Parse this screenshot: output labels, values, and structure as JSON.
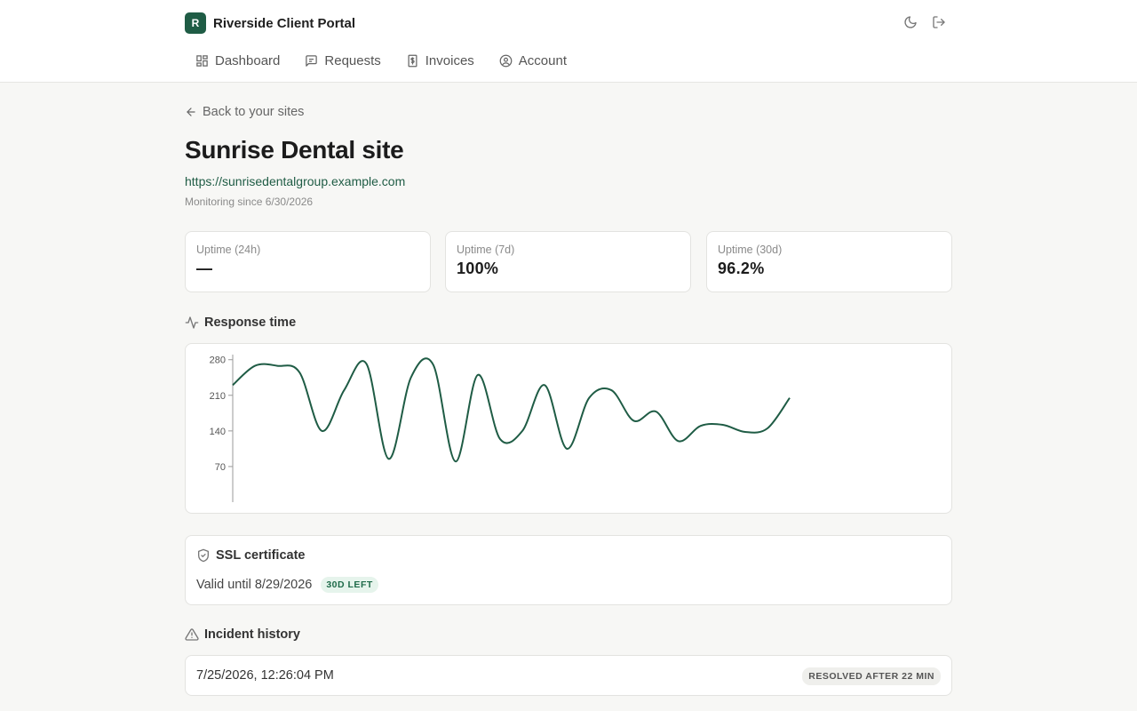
{
  "brand": {
    "logo_letter": "R",
    "name": "Riverside Client Portal"
  },
  "top_actions": [
    {
      "name": "theme-toggle",
      "icon": "moon-icon"
    },
    {
      "name": "logout",
      "icon": "logout-icon"
    }
  ],
  "nav": {
    "items": [
      {
        "label": "Dashboard",
        "icon": "dashboard-icon"
      },
      {
        "label": "Requests",
        "icon": "message-icon"
      },
      {
        "label": "Invoices",
        "icon": "invoice-icon"
      },
      {
        "label": "Account",
        "icon": "user-circle-icon"
      }
    ]
  },
  "back_link": "Back to your sites",
  "site": {
    "title": "Sunrise Dental site",
    "url": "https://sunrisedentalgroup.example.com",
    "monitoring_since": "Monitoring since 6/30/2026"
  },
  "stats": [
    {
      "label": "Uptime (24h)",
      "value": "—"
    },
    {
      "label": "Uptime (7d)",
      "value": "100%"
    },
    {
      "label": "Uptime (30d)",
      "value": "96.2%"
    }
  ],
  "response_time": {
    "heading": "Response time",
    "icon": "activity-icon"
  },
  "chart_data": {
    "type": "line",
    "title": "",
    "xlabel": "",
    "ylabel": "",
    "yticks": [
      70,
      140,
      210,
      280
    ],
    "ylim": [
      0,
      290
    ],
    "grid": false,
    "color": "#1f5c45",
    "values": [
      230,
      268,
      268,
      255,
      140,
      220,
      272,
      85,
      245,
      270,
      80,
      250,
      124,
      140,
      230,
      105,
      205,
      220,
      160,
      178,
      120,
      150,
      152,
      138,
      145,
      205
    ]
  },
  "ssl": {
    "title": "SSL certificate",
    "icon": "shield-check-icon",
    "valid_text": "Valid until 8/29/2026",
    "badge": "30D LEFT"
  },
  "incidents": {
    "heading": "Incident history",
    "icon": "alert-triangle-icon",
    "items": [
      {
        "time": "7/25/2026, 12:26:04 PM",
        "status": "RESOLVED AFTER 22 MIN"
      }
    ]
  }
}
